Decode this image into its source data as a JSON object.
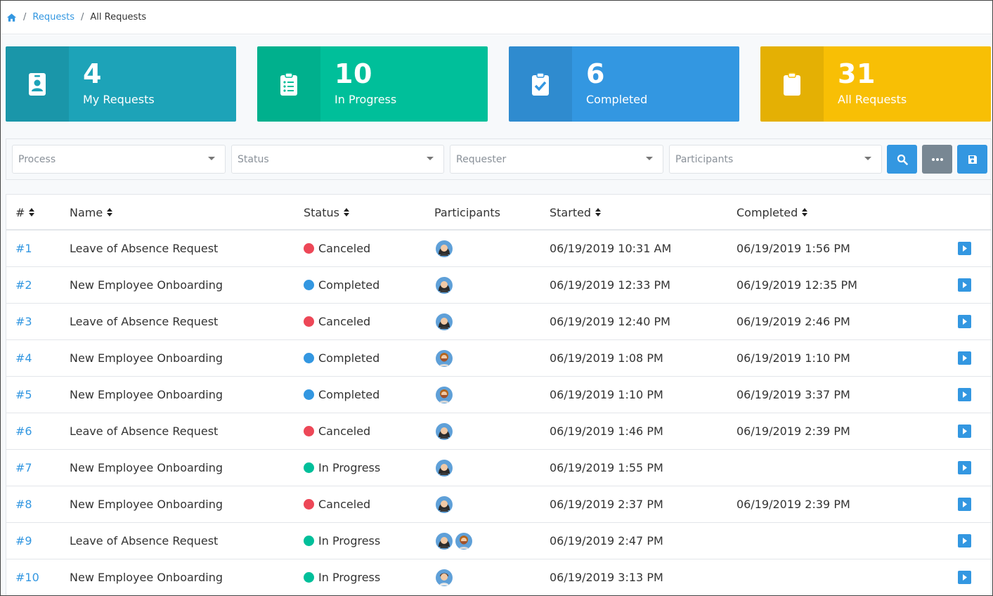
{
  "breadcrumb": {
    "home_icon": "home-icon",
    "separator": "/",
    "link": "Requests",
    "current": "All Requests"
  },
  "cards": [
    {
      "count": "4",
      "label": "My Requests",
      "icon": "id-badge-icon",
      "color": "#1da3b8"
    },
    {
      "count": "10",
      "label": "In Progress",
      "icon": "clipboard-list-icon",
      "color": "#00bf9a"
    },
    {
      "count": "6",
      "label": "Completed",
      "icon": "clipboard-check-icon",
      "color": "#3397e1"
    },
    {
      "count": "31",
      "label": "All Requests",
      "icon": "clipboard-icon",
      "color": "#f8bf05"
    }
  ],
  "filters": {
    "process": "Process",
    "status": "Status",
    "requester": "Requester",
    "participants": "Participants",
    "search_icon": "search-icon",
    "more_icon": "ellipsis-icon",
    "save_icon": "save-icon"
  },
  "table": {
    "headers": {
      "id": "#",
      "name": "Name",
      "status": "Status",
      "participants": "Participants",
      "started": "Started",
      "completed": "Completed"
    },
    "status_colors": {
      "Canceled": "#ed4757",
      "Completed": "#3397e1",
      "In Progress": "#00bf9a"
    },
    "rows": [
      {
        "id": "#1",
        "name": "Leave of Absence Request",
        "status": "Canceled",
        "participants": [
          "female"
        ],
        "started": "06/19/2019 10:31 AM",
        "completed": "06/19/2019 1:56 PM"
      },
      {
        "id": "#2",
        "name": "New Employee Onboarding",
        "status": "Completed",
        "participants": [
          "female"
        ],
        "started": "06/19/2019 12:33 PM",
        "completed": "06/19/2019 12:35 PM"
      },
      {
        "id": "#3",
        "name": "Leave of Absence Request",
        "status": "Canceled",
        "participants": [
          "female"
        ],
        "started": "06/19/2019 12:40 PM",
        "completed": "06/19/2019 2:46 PM"
      },
      {
        "id": "#4",
        "name": "New Employee Onboarding",
        "status": "Completed",
        "participants": [
          "bearded"
        ],
        "started": "06/19/2019 1:08 PM",
        "completed": "06/19/2019 1:10 PM"
      },
      {
        "id": "#5",
        "name": "New Employee Onboarding",
        "status": "Completed",
        "participants": [
          "bearded"
        ],
        "started": "06/19/2019 1:10 PM",
        "completed": "06/19/2019 3:37 PM"
      },
      {
        "id": "#6",
        "name": "Leave of Absence Request",
        "status": "Canceled",
        "participants": [
          "female"
        ],
        "started": "06/19/2019 1:46 PM",
        "completed": "06/19/2019 2:39 PM"
      },
      {
        "id": "#7",
        "name": "New Employee Onboarding",
        "status": "In Progress",
        "participants": [
          "female"
        ],
        "started": "06/19/2019 1:55 PM",
        "completed": ""
      },
      {
        "id": "#8",
        "name": "New Employee Onboarding",
        "status": "Canceled",
        "participants": [
          "female"
        ],
        "started": "06/19/2019 2:37 PM",
        "completed": "06/19/2019 2:39 PM"
      },
      {
        "id": "#9",
        "name": "Leave of Absence Request",
        "status": "In Progress",
        "participants": [
          "female",
          "bearded"
        ],
        "started": "06/19/2019 2:47 PM",
        "completed": ""
      },
      {
        "id": "#10",
        "name": "New Employee Onboarding",
        "status": "In Progress",
        "participants": [
          "male"
        ],
        "started": "06/19/2019 3:13 PM",
        "completed": ""
      }
    ]
  }
}
